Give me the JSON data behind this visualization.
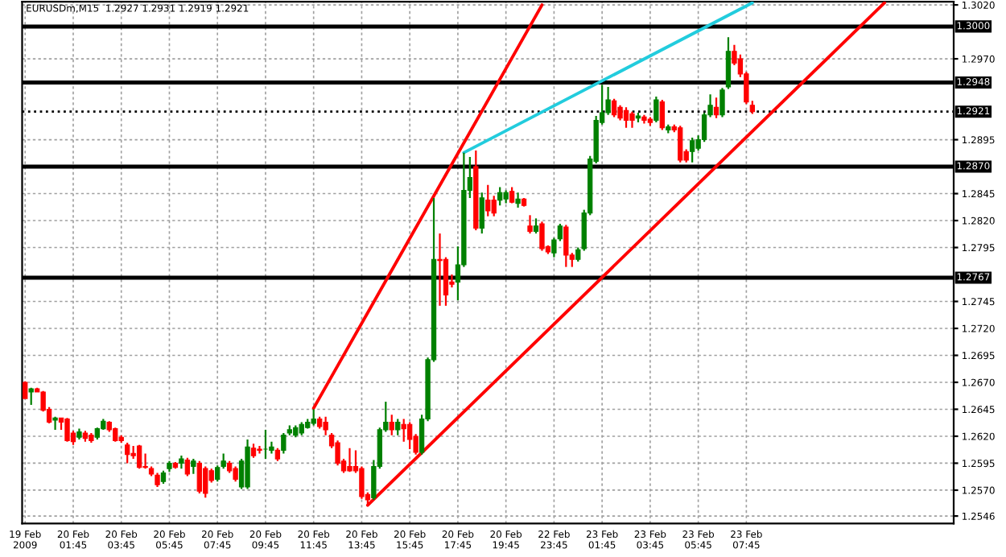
{
  "chart_data": {
    "type": "candlestick",
    "title": "EURUSDm,M15  1.2927 1.2931 1.2919 1.2921",
    "categories": [
      "19 Feb 2009",
      null,
      null,
      null,
      null,
      null,
      null,
      null,
      "20 Feb 01:45",
      null,
      null,
      null,
      null,
      null,
      null,
      null,
      "20 Feb 03:45",
      null,
      null,
      null,
      null,
      null,
      null,
      null,
      "20 Feb 05:45",
      null,
      null,
      null,
      null,
      null,
      null,
      null,
      "20 Feb 07:45",
      null,
      null,
      null,
      null,
      null,
      null,
      null,
      "20 Feb 09:45",
      null,
      null,
      null,
      null,
      null,
      null,
      null,
      "20 Feb 11:45",
      null,
      null,
      null,
      null,
      null,
      null,
      null,
      "20 Feb 13:45",
      null,
      null,
      null,
      null,
      null,
      null,
      null,
      "20 Feb 15:45",
      null,
      null,
      null,
      null,
      null,
      null,
      null,
      "20 Feb 17:45",
      null,
      null,
      null,
      null,
      null,
      null,
      null,
      "20 Feb 19:45",
      null,
      null,
      null,
      null,
      null,
      null,
      null,
      "22 Feb 23:45",
      null,
      null,
      null,
      null,
      null,
      null,
      null,
      "23 Feb 01:45",
      null,
      null,
      null,
      null,
      null,
      null,
      null,
      "23 Feb 03:45",
      null,
      null,
      null,
      null,
      null,
      null,
      null,
      "23 Feb 05:45",
      null,
      null,
      null,
      null,
      null,
      null,
      null,
      "23 Feb 07:45",
      null,
      null,
      null,
      null,
      null,
      null,
      null,
      null,
      null,
      null,
      null,
      null,
      null,
      null,
      null,
      null,
      null,
      null,
      null,
      null,
      null,
      null,
      null,
      null,
      null,
      null,
      null,
      null,
      null,
      null,
      null,
      null,
      null,
      null
    ],
    "ohlc": [
      [
        1.267,
        1.2671,
        1.2655,
        1.2655
      ],
      [
        1.2661,
        1.2665,
        1.2649,
        1.2664
      ],
      [
        1.2664,
        1.2665,
        1.2661,
        1.2661
      ],
      [
        1.2661,
        1.2662,
        1.2643,
        1.2644
      ],
      [
        1.2645,
        1.2647,
        1.2632,
        1.2633
      ],
      [
        1.2635,
        1.2638,
        1.2626,
        1.2637
      ],
      [
        1.2637,
        1.2637,
        1.2626,
        1.2633
      ],
      [
        1.2636,
        1.2637,
        1.2615,
        1.2616
      ],
      [
        1.2623,
        1.2625,
        1.2612,
        1.2615
      ],
      [
        1.2619,
        1.2627,
        1.2617,
        1.2624
      ],
      [
        1.2623,
        1.2625,
        1.2615,
        1.2618
      ],
      [
        1.2621,
        1.2623,
        1.2614,
        1.2616
      ],
      [
        1.2619,
        1.2628,
        1.2617,
        1.2627
      ],
      [
        1.2627,
        1.2636,
        1.2626,
        1.2634
      ],
      [
        1.2633,
        1.2634,
        1.2624,
        1.2626
      ],
      [
        1.2627,
        1.2628,
        1.2615,
        1.2616
      ],
      [
        1.2619,
        1.2621,
        1.2614,
        1.2616
      ],
      [
        1.2612,
        1.2614,
        1.2595,
        1.2603
      ],
      [
        1.2604,
        1.2611,
        1.2599,
        1.2602
      ],
      [
        1.2611,
        1.2612,
        1.259,
        1.2591
      ],
      [
        1.2592,
        1.2604,
        1.259,
        1.2591
      ],
      [
        1.259,
        1.2592,
        1.2583,
        1.2585
      ],
      [
        1.2584,
        1.2586,
        1.2573,
        1.2575
      ],
      [
        1.2578,
        1.2588,
        1.2576,
        1.2586
      ],
      [
        1.259,
        1.2597,
        1.2587,
        1.2595
      ],
      [
        1.2595,
        1.2596,
        1.259,
        1.2591
      ],
      [
        1.2595,
        1.2602,
        1.259,
        1.2599
      ],
      [
        1.2598,
        1.26,
        1.2583,
        1.2585
      ],
      [
        1.2592,
        1.2599,
        1.2585,
        1.2597
      ],
      [
        1.2595,
        1.2597,
        1.2567,
        1.2569
      ],
      [
        1.259,
        1.2592,
        1.2563,
        1.2567
      ],
      [
        1.2588,
        1.259,
        1.2577,
        1.2579
      ],
      [
        1.258,
        1.2593,
        1.2578,
        1.2591
      ],
      [
        1.2592,
        1.2604,
        1.259,
        1.2597
      ],
      [
        1.2595,
        1.2597,
        1.2586,
        1.2588
      ],
      [
        1.259,
        1.2592,
        1.2578,
        1.258
      ],
      [
        1.2573,
        1.2599,
        1.2571,
        1.2597
      ],
      [
        1.2573,
        1.2617,
        1.2571,
        1.261
      ],
      [
        1.2609,
        1.2613,
        1.26,
        1.2602
      ],
      [
        1.2608,
        1.2611,
        1.2604,
        1.2607
      ],
      [
        1.2608,
        1.2626,
        1.2599,
        1.2608
      ],
      [
        1.2607,
        1.2615,
        1.2604,
        1.261
      ],
      [
        1.2607,
        1.2609,
        1.2597,
        1.2599
      ],
      [
        1.2607,
        1.2623,
        1.2604,
        1.2621
      ],
      [
        1.2623,
        1.263,
        1.2621,
        1.2626
      ],
      [
        1.2621,
        1.263,
        1.2619,
        1.2628
      ],
      [
        1.2623,
        1.2633,
        1.2621,
        1.2631
      ],
      [
        1.2628,
        1.2636,
        1.2627,
        1.2633
      ],
      [
        1.2632,
        1.2645,
        1.263,
        1.2636
      ],
      [
        1.2636,
        1.2638,
        1.2627,
        1.2629
      ],
      [
        1.2633,
        1.2638,
        1.2621,
        1.2626
      ],
      [
        1.2621,
        1.2623,
        1.2609,
        1.2611
      ],
      [
        1.2614,
        1.2616,
        1.2593,
        1.2595
      ],
      [
        1.2597,
        1.2599,
        1.2586,
        1.2588
      ],
      [
        1.2592,
        1.2609,
        1.2587,
        1.2588
      ],
      [
        1.2592,
        1.2607,
        1.2586,
        1.2588
      ],
      [
        1.259,
        1.2592,
        1.2562,
        1.2564
      ],
      [
        1.2566,
        1.2568,
        1.2555,
        1.2561
      ],
      [
        1.2563,
        1.2598,
        1.2561,
        1.2592
      ],
      [
        1.2592,
        1.2628,
        1.259,
        1.2626
      ],
      [
        1.2626,
        1.2652,
        1.2624,
        1.2633
      ],
      [
        1.2633,
        1.264,
        1.2621,
        1.2626
      ],
      [
        1.2626,
        1.2636,
        1.2621,
        1.2633
      ],
      [
        1.2631,
        1.2636,
        1.2615,
        1.2627
      ],
      [
        1.2631,
        1.2633,
        1.2608,
        1.2617
      ],
      [
        1.262,
        1.2622,
        1.2603,
        1.2605
      ],
      [
        1.2605,
        1.264,
        1.2603,
        1.2636
      ],
      [
        1.2636,
        1.2693,
        1.2634,
        1.2691
      ],
      [
        1.2691,
        1.2841,
        1.2689,
        1.2784
      ],
      [
        1.2784,
        1.2808,
        1.2741,
        1.2783
      ],
      [
        1.2784,
        1.2786,
        1.2741,
        1.2751
      ],
      [
        1.2763,
        1.277,
        1.2758,
        1.2761
      ],
      [
        1.2763,
        1.2796,
        1.2746,
        1.2779
      ],
      [
        1.2779,
        1.2883,
        1.2777,
        1.2848
      ],
      [
        1.2848,
        1.2879,
        1.2841,
        1.286
      ],
      [
        1.287,
        1.2885,
        1.2811,
        1.2813
      ],
      [
        1.2813,
        1.2846,
        1.2808,
        1.2841
      ],
      [
        1.2839,
        1.2853,
        1.2824,
        1.2829
      ],
      [
        1.2839,
        1.2843,
        1.2824,
        1.2827
      ],
      [
        1.2839,
        1.2851,
        1.2834,
        1.2846
      ],
      [
        1.284,
        1.2848,
        1.2836,
        1.2846
      ],
      [
        1.2847,
        1.2851,
        1.2836,
        1.2837
      ],
      [
        1.2836,
        1.2846,
        1.2832,
        1.284
      ],
      [
        1.284,
        1.2841,
        1.2833,
        1.2834
      ],
      [
        1.2815,
        1.2825,
        1.2808,
        1.281
      ],
      [
        1.281,
        1.2822,
        1.2808,
        1.2815
      ],
      [
        1.2817,
        1.2819,
        1.2792,
        1.2794
      ],
      [
        1.2796,
        1.2797,
        1.2789,
        1.2791
      ],
      [
        1.279,
        1.2804,
        1.2786,
        1.2802
      ],
      [
        1.2803,
        1.2817,
        1.2801,
        1.2815
      ],
      [
        1.2814,
        1.2816,
        1.2777,
        1.2788
      ],
      [
        1.2788,
        1.279,
        1.2777,
        1.2784
      ],
      [
        1.2784,
        1.2795,
        1.2782,
        1.2793
      ],
      [
        1.2794,
        1.283,
        1.2792,
        1.2827
      ],
      [
        1.2827,
        1.288,
        1.2825,
        1.2877
      ],
      [
        1.2875,
        1.2917,
        1.2873,
        1.2913
      ],
      [
        1.2911,
        1.2946,
        1.2909,
        1.292
      ],
      [
        1.292,
        1.2944,
        1.2918,
        1.2932
      ],
      [
        1.2931,
        1.2933,
        1.2916,
        1.2918
      ],
      [
        1.2925,
        1.2927,
        1.2913,
        1.2915
      ],
      [
        1.2922,
        1.2925,
        1.2906,
        1.2913
      ],
      [
        1.2919,
        1.2921,
        1.2906,
        1.2913
      ],
      [
        1.2915,
        1.292,
        1.2911,
        1.2917
      ],
      [
        1.2916,
        1.2918,
        1.291,
        1.2913
      ],
      [
        1.2914,
        1.2916,
        1.2908,
        1.2911
      ],
      [
        1.2913,
        1.2935,
        1.2911,
        1.2932
      ],
      [
        1.293,
        1.2932,
        1.2904,
        1.2906
      ],
      [
        1.2904,
        1.2909,
        1.2901,
        1.2907
      ],
      [
        1.2907,
        1.2909,
        1.2902,
        1.2904
      ],
      [
        1.2906,
        1.2908,
        1.2874,
        1.2876
      ],
      [
        1.2884,
        1.2886,
        1.2874,
        1.2876
      ],
      [
        1.2884,
        1.2897,
        1.2874,
        1.2894
      ],
      [
        1.2887,
        1.2899,
        1.2885,
        1.2895
      ],
      [
        1.2895,
        1.292,
        1.2893,
        1.2918
      ],
      [
        1.2918,
        1.2937,
        1.2916,
        1.2927
      ],
      [
        1.2925,
        1.2934,
        1.2915,
        1.2918
      ],
      [
        1.2918,
        1.2943,
        1.2916,
        1.2941
      ],
      [
        1.2944,
        1.299,
        1.2942,
        1.2977
      ],
      [
        1.2977,
        1.2983,
        1.2964,
        1.2966
      ],
      [
        1.297,
        1.2974,
        1.2953,
        1.2956
      ],
      [
        1.2956,
        1.2958,
        1.2928,
        1.293
      ],
      [
        1.2927,
        1.2931,
        1.2919,
        1.2921
      ],
      null,
      null,
      null,
      null,
      null,
      null,
      null,
      null,
      null,
      null,
      null,
      null,
      null,
      null,
      null,
      null,
      null,
      null,
      null,
      null,
      null,
      null,
      null,
      null,
      null,
      null,
      null,
      null,
      null,
      null,
      null,
      null,
      null
    ],
    "colors": [
      "#ff0000",
      "#008000",
      "#ff0000",
      "#ff0000",
      "#ff0000",
      "#008000",
      "#ff0000",
      "#ff0000",
      "#ff0000",
      "#008000",
      "#ff0000",
      "#ff0000",
      "#008000",
      "#008000",
      "#ff0000",
      "#ff0000",
      "#ff0000",
      "#ff0000",
      "#ff0000",
      "#ff0000",
      "#ff0000",
      "#ff0000",
      "#ff0000",
      "#008000",
      "#008000",
      "#ff0000",
      "#008000",
      "#ff0000",
      "#008000",
      "#ff0000",
      "#ff0000",
      "#ff0000",
      "#008000",
      "#008000",
      "#ff0000",
      "#ff0000",
      "#008000",
      "#008000",
      "#ff0000",
      "#ff0000",
      "#008000",
      "#008000",
      "#ff0000",
      "#008000",
      "#008000",
      "#008000",
      "#008000",
      "#008000",
      "#008000",
      "#ff0000",
      "#ff0000",
      "#ff0000",
      "#ff0000",
      "#ff0000",
      "#ff0000",
      "#ff0000",
      "#ff0000",
      "#ff0000",
      "#008000",
      "#008000",
      "#008000",
      "#ff0000",
      "#008000",
      "#ff0000",
      "#ff0000",
      "#ff0000",
      "#008000",
      "#008000",
      "#008000",
      "#ff0000",
      "#ff0000",
      "#ff0000",
      "#008000",
      "#008000",
      "#008000",
      "#ff0000",
      "#008000",
      "#ff0000",
      "#ff0000",
      "#008000",
      "#008000",
      "#ff0000",
      "#008000",
      "#ff0000",
      "#ff0000",
      "#008000",
      "#ff0000",
      "#ff0000",
      "#008000",
      "#008000",
      "#ff0000",
      "#ff0000",
      "#008000",
      "#008000",
      "#008000",
      "#008000",
      "#008000",
      "#008000",
      "#ff0000",
      "#ff0000",
      "#ff0000",
      "#ff0000",
      "#008000",
      "#ff0000",
      "#ff0000",
      "#008000",
      "#ff0000",
      "#008000",
      "#ff0000",
      "#ff0000",
      "#ff0000",
      "#008000",
      "#008000",
      "#008000",
      "#008000",
      "#ff0000",
      "#008000",
      "#008000",
      "#ff0000",
      "#ff0000",
      "#ff0000",
      "#ff0000",
      null,
      null,
      null,
      null,
      null,
      null,
      null,
      null,
      null,
      null,
      null,
      null,
      null,
      null,
      null,
      null,
      null,
      null,
      null,
      null,
      null,
      null,
      null,
      null,
      null,
      null,
      null,
      null,
      null,
      null,
      null,
      null,
      null
    ],
    "series": [
      {
        "type": "line",
        "color": "#ff0000",
        "values": [
          null,
          null,
          null,
          null,
          null,
          null,
          null,
          null,
          null,
          null,
          null,
          null,
          null,
          null,
          null,
          null,
          null,
          null,
          null,
          null,
          null,
          null,
          null,
          null,
          null,
          null,
          null,
          null,
          null,
          null,
          null,
          null,
          null,
          null,
          null,
          null,
          null,
          null,
          null,
          null,
          null,
          null,
          null,
          null,
          null,
          null,
          null,
          null,
          1.2646,
          null,
          null,
          null,
          null,
          null,
          null,
          null,
          null,
          null,
          null,
          null,
          null,
          null,
          null,
          null,
          null,
          null,
          null,
          null,
          null,
          null,
          null,
          null,
          null,
          null,
          null,
          null,
          null,
          null,
          null,
          null,
          null,
          null,
          null,
          null,
          null,
          null,
          1.302,
          null,
          null,
          null,
          null,
          null,
          null,
          null,
          null,
          null,
          null,
          null,
          null,
          null,
          null,
          null,
          null,
          null,
          null,
          null,
          null,
          null,
          null,
          null,
          null,
          null,
          null,
          null,
          null,
          null,
          null,
          null,
          null,
          null,
          null,
          null,
          null,
          null,
          null,
          null,
          null,
          null,
          null,
          null,
          null,
          null,
          null,
          null,
          null,
          null,
          null,
          null,
          null,
          null,
          null,
          null,
          null,
          null,
          null,
          null,
          null,
          null,
          null,
          null,
          null,
          null,
          null,
          null,
          null
        ]
      },
      {
        "type": "line",
        "color": "#ff0000",
        "values": [
          null,
          null,
          null,
          null,
          null,
          null,
          null,
          null,
          null,
          null,
          null,
          null,
          null,
          null,
          null,
          null,
          null,
          null,
          null,
          null,
          null,
          null,
          null,
          null,
          null,
          null,
          null,
          null,
          null,
          null,
          null,
          null,
          null,
          null,
          null,
          null,
          null,
          null,
          null,
          null,
          null,
          null,
          null,
          null,
          null,
          null,
          null,
          null,
          null,
          null,
          null,
          null,
          null,
          null,
          null,
          null,
          null,
          1.2556,
          null,
          null,
          null,
          null,
          null,
          null,
          null,
          null,
          null,
          null,
          null,
          null,
          null,
          null,
          null,
          null,
          null,
          null,
          null,
          null,
          null,
          null,
          null,
          null,
          null,
          null,
          null,
          null,
          null,
          null,
          null,
          null,
          null,
          null,
          null,
          null,
          null,
          null,
          null,
          null,
          null,
          null,
          null,
          null,
          null,
          null,
          null,
          null,
          null,
          null,
          null,
          null,
          null,
          null,
          null,
          null,
          null,
          null,
          null,
          null,
          null,
          null,
          null,
          null,
          null,
          null,
          null,
          null,
          null,
          null,
          null,
          null,
          null,
          null,
          null,
          null,
          null,
          null,
          null,
          null,
          null,
          null,
          null,
          null,
          null,
          1.3022,
          null,
          null,
          null,
          null,
          null,
          null,
          null,
          null,
          null,
          null,
          null
        ]
      },
      {
        "type": "line",
        "color": "#22ccdd",
        "values": [
          null,
          null,
          null,
          null,
          null,
          null,
          null,
          null,
          null,
          null,
          null,
          null,
          null,
          null,
          null,
          null,
          null,
          null,
          null,
          null,
          null,
          null,
          null,
          null,
          null,
          null,
          null,
          null,
          null,
          null,
          null,
          null,
          null,
          null,
          null,
          null,
          null,
          null,
          null,
          null,
          null,
          null,
          null,
          null,
          null,
          null,
          null,
          null,
          null,
          null,
          null,
          null,
          null,
          null,
          null,
          null,
          null,
          null,
          null,
          null,
          null,
          null,
          null,
          null,
          null,
          null,
          null,
          null,
          null,
          null,
          null,
          null,
          null,
          1.2883,
          null,
          null,
          null,
          null,
          null,
          null,
          null,
          null,
          null,
          null,
          null,
          null,
          null,
          null,
          null,
          null,
          null,
          null,
          null,
          null,
          null,
          null,
          null,
          null,
          null,
          null,
          null,
          null,
          null,
          null,
          null,
          null,
          null,
          null,
          null,
          null,
          null,
          null,
          null,
          null,
          null,
          null,
          null,
          null,
          null,
          null,
          null,
          1.3022,
          null,
          null,
          null,
          null,
          null,
          null,
          null,
          null,
          null,
          null,
          null,
          null,
          null,
          null,
          null,
          null,
          null,
          null,
          null,
          null,
          null,
          null,
          null,
          null,
          null,
          null,
          null,
          null,
          null,
          null,
          null,
          null,
          null
        ]
      }
    ],
    "ylim": [
      1.2539,
      1.3023
    ],
    "yticks": [
      {
        "value": 1.302,
        "label": "1.3020"
      },
      {
        "value": 1.297,
        "label": "1.2970"
      },
      {
        "value": 1.2895,
        "label": "1.2895"
      },
      {
        "value": 1.2845,
        "label": "1.2845"
      },
      {
        "value": 1.282,
        "label": "1.2820"
      },
      {
        "value": 1.2795,
        "label": "1.2795"
      },
      {
        "value": 1.2745,
        "label": "1.2745"
      },
      {
        "value": 1.272,
        "label": "1.2720"
      },
      {
        "value": 1.2695,
        "label": "1.2695"
      },
      {
        "value": 1.267,
        "label": "1.2670"
      },
      {
        "value": 1.2645,
        "label": "1.2645"
      },
      {
        "value": 1.262,
        "label": "1.2620"
      },
      {
        "value": 1.2595,
        "label": "1.2595"
      },
      {
        "value": 1.257,
        "label": "1.2570"
      },
      {
        "value": 1.2546,
        "label": "1.2546"
      }
    ],
    "ref_lines": [
      {
        "axis": "y",
        "value": 1.3,
        "label": "1.3000",
        "color": "#000000",
        "line_style": "solid"
      },
      {
        "axis": "y",
        "value": 1.2948,
        "label": "1.2948",
        "color": "#000000",
        "line_style": "solid"
      },
      {
        "axis": "y",
        "value": 1.2921,
        "label": "1.2921",
        "color": "#000000",
        "line_style": "dotted"
      },
      {
        "axis": "y",
        "value": 1.287,
        "label": "1.2870",
        "color": "#000000",
        "line_style": "solid"
      },
      {
        "axis": "y",
        "value": 1.2767,
        "label": "1.2767",
        "color": "#000000",
        "line_style": "solid"
      }
    ],
    "grid": true,
    "legend": false
  }
}
